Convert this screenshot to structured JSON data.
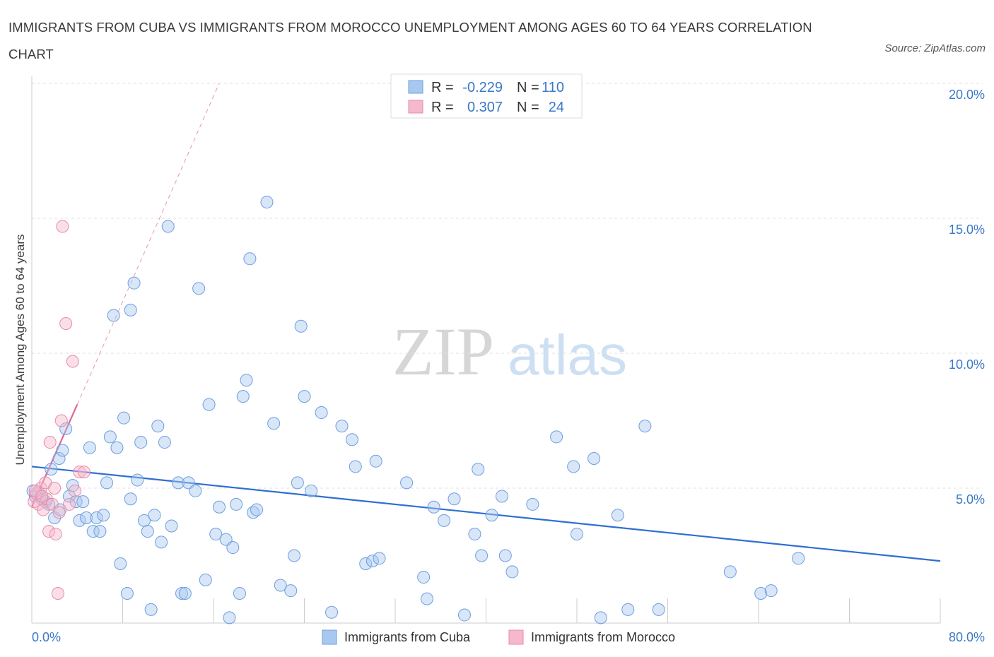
{
  "title": "IMMIGRANTS FROM CUBA VS IMMIGRANTS FROM MOROCCO UNEMPLOYMENT AMONG AGES 60 TO 64 YEARS CORRELATION CHART",
  "source": "Source: ZipAtlas.com",
  "watermark": {
    "zip": "ZIP",
    "atlas": "atlas"
  },
  "legend": {
    "rows": [
      {
        "r_label": "R =",
        "r_value": "-0.229",
        "n_label": "N =",
        "n_value": "110",
        "color": "#a9c8f0",
        "stroke": "#6b9fe0"
      },
      {
        "r_label": "R =",
        "r_value": "0.307",
        "n_label": "N =",
        "n_value": "24",
        "color": "#f6b8cb",
        "stroke": "#e88aa8"
      }
    ]
  },
  "bottom_legend": [
    "Immigrants from Cuba",
    "Immigrants from Morocco"
  ],
  "chart_data": {
    "type": "scatter",
    "title": "IMMIGRANTS FROM CUBA VS IMMIGRANTS FROM MOROCCO UNEMPLOYMENT AMONG AGES 60 TO 64 YEARS CORRELATION CHART",
    "xlabel": "",
    "ylabel": "Unemployment Among Ages 60 to 64 years",
    "xlim": [
      0,
      80
    ],
    "ylim": [
      0,
      20
    ],
    "x_tick_labels": [
      "0.0%",
      "80.0%"
    ],
    "y_ticks": [
      5,
      10,
      15,
      20
    ],
    "y_tick_labels": [
      "5.0%",
      "10.0%",
      "15.0%",
      "20.0%"
    ],
    "grid": true,
    "legend_position": "top-center",
    "series": [
      {
        "name": "Immigrants from Cuba",
        "color": "#a9c8f0",
        "stroke": "#6b9fe0",
        "trend": {
          "x": [
            0,
            80
          ],
          "y": [
            5.8,
            2.3
          ],
          "color": "#2f6fd0"
        },
        "points": [
          [
            0.3,
            4.7
          ],
          [
            0.6,
            4.8
          ],
          [
            0.9,
            4.6
          ],
          [
            1.2,
            4.5
          ],
          [
            1.5,
            4.4
          ],
          [
            1.7,
            5.7
          ],
          [
            2.0,
            3.9
          ],
          [
            2.4,
            6.1
          ],
          [
            2.7,
            6.4
          ],
          [
            3.0,
            7.2
          ],
          [
            3.3,
            4.7
          ],
          [
            3.6,
            5.1
          ],
          [
            3.9,
            4.5
          ],
          [
            4.2,
            3.8
          ],
          [
            4.5,
            4.5
          ],
          [
            4.8,
            3.9
          ],
          [
            5.1,
            6.5
          ],
          [
            5.4,
            3.4
          ],
          [
            5.7,
            3.9
          ],
          [
            6.0,
            3.4
          ],
          [
            6.3,
            4.0
          ],
          [
            6.6,
            5.2
          ],
          [
            6.9,
            6.9
          ],
          [
            7.2,
            11.4
          ],
          [
            7.5,
            6.5
          ],
          [
            7.8,
            2.2
          ],
          [
            8.1,
            7.6
          ],
          [
            8.4,
            1.1
          ],
          [
            8.7,
            11.6
          ],
          [
            9.0,
            12.6
          ],
          [
            9.3,
            5.3
          ],
          [
            9.6,
            6.7
          ],
          [
            9.9,
            3.8
          ],
          [
            10.2,
            3.4
          ],
          [
            10.5,
            0.5
          ],
          [
            10.8,
            4.0
          ],
          [
            11.1,
            7.3
          ],
          [
            11.4,
            3.0
          ],
          [
            11.7,
            6.7
          ],
          [
            12.0,
            14.7
          ],
          [
            12.3,
            3.6
          ],
          [
            12.9,
            5.2
          ],
          [
            13.2,
            1.1
          ],
          [
            13.5,
            1.1
          ],
          [
            13.8,
            5.2
          ],
          [
            14.4,
            4.9
          ],
          [
            14.7,
            12.4
          ],
          [
            15.3,
            1.6
          ],
          [
            15.6,
            8.1
          ],
          [
            16.2,
            3.3
          ],
          [
            16.5,
            4.3
          ],
          [
            17.1,
            3.1
          ],
          [
            17.4,
            0.2
          ],
          [
            17.7,
            2.8
          ],
          [
            18.0,
            4.4
          ],
          [
            18.3,
            1.1
          ],
          [
            18.6,
            8.4
          ],
          [
            18.9,
            9.0
          ],
          [
            19.2,
            13.5
          ],
          [
            19.5,
            4.1
          ],
          [
            19.8,
            4.2
          ],
          [
            20.7,
            15.6
          ],
          [
            21.3,
            7.4
          ],
          [
            21.9,
            1.4
          ],
          [
            22.8,
            1.2
          ],
          [
            23.1,
            2.5
          ],
          [
            23.4,
            5.2
          ],
          [
            23.7,
            11.0
          ],
          [
            24.0,
            8.4
          ],
          [
            24.6,
            4.9
          ],
          [
            25.5,
            7.8
          ],
          [
            26.4,
            0.4
          ],
          [
            27.3,
            7.3
          ],
          [
            28.2,
            6.8
          ],
          [
            28.5,
            5.8
          ],
          [
            29.4,
            2.2
          ],
          [
            30.0,
            2.3
          ],
          [
            30.3,
            6.0
          ],
          [
            30.6,
            2.4
          ],
          [
            33.0,
            5.2
          ],
          [
            34.5,
            1.7
          ],
          [
            34.8,
            0.9
          ],
          [
            35.4,
            4.3
          ],
          [
            36.3,
            3.8
          ],
          [
            37.2,
            4.6
          ],
          [
            38.1,
            0.3
          ],
          [
            39.0,
            3.3
          ],
          [
            39.3,
            5.7
          ],
          [
            39.6,
            2.5
          ],
          [
            40.5,
            4.0
          ],
          [
            41.4,
            4.7
          ],
          [
            41.7,
            2.5
          ],
          [
            42.3,
            1.9
          ],
          [
            44.1,
            4.4
          ],
          [
            46.2,
            6.9
          ],
          [
            47.7,
            5.8
          ],
          [
            48.0,
            3.3
          ],
          [
            49.5,
            6.1
          ],
          [
            50.1,
            0.2
          ],
          [
            51.6,
            4.0
          ],
          [
            52.5,
            0.5
          ],
          [
            54.0,
            7.3
          ],
          [
            55.2,
            0.5
          ],
          [
            61.5,
            1.9
          ],
          [
            64.2,
            1.1
          ],
          [
            65.1,
            1.2
          ],
          [
            67.5,
            2.4
          ],
          [
            8.7,
            4.6
          ],
          [
            0.1,
            4.9
          ],
          [
            2.5,
            4.2
          ]
        ]
      },
      {
        "name": "Immigrants from Morocco",
        "color": "#f6b8cb",
        "stroke": "#e88aa8",
        "trend": {
          "x": [
            0,
            4
          ],
          "y": [
            4.3,
            8.1
          ],
          "dash_extend_to": [
            16.5,
            20
          ],
          "color": "#e0678e"
        },
        "points": [
          [
            0.2,
            4.5
          ],
          [
            0.4,
            4.8
          ],
          [
            0.6,
            4.4
          ],
          [
            0.8,
            5.0
          ],
          [
            1.0,
            4.2
          ],
          [
            1.2,
            5.2
          ],
          [
            1.3,
            4.6
          ],
          [
            1.5,
            3.4
          ],
          [
            1.6,
            6.7
          ],
          [
            1.8,
            4.4
          ],
          [
            2.0,
            5.0
          ],
          [
            2.1,
            3.3
          ],
          [
            2.3,
            1.1
          ],
          [
            2.4,
            4.1
          ],
          [
            2.6,
            7.5
          ],
          [
            2.7,
            14.7
          ],
          [
            3.0,
            11.1
          ],
          [
            3.3,
            4.4
          ],
          [
            3.6,
            9.7
          ],
          [
            3.8,
            4.9
          ],
          [
            4.2,
            5.6
          ],
          [
            4.6,
            5.6
          ],
          [
            0.3,
            4.9
          ],
          [
            0.9,
            4.7
          ]
        ]
      }
    ]
  }
}
